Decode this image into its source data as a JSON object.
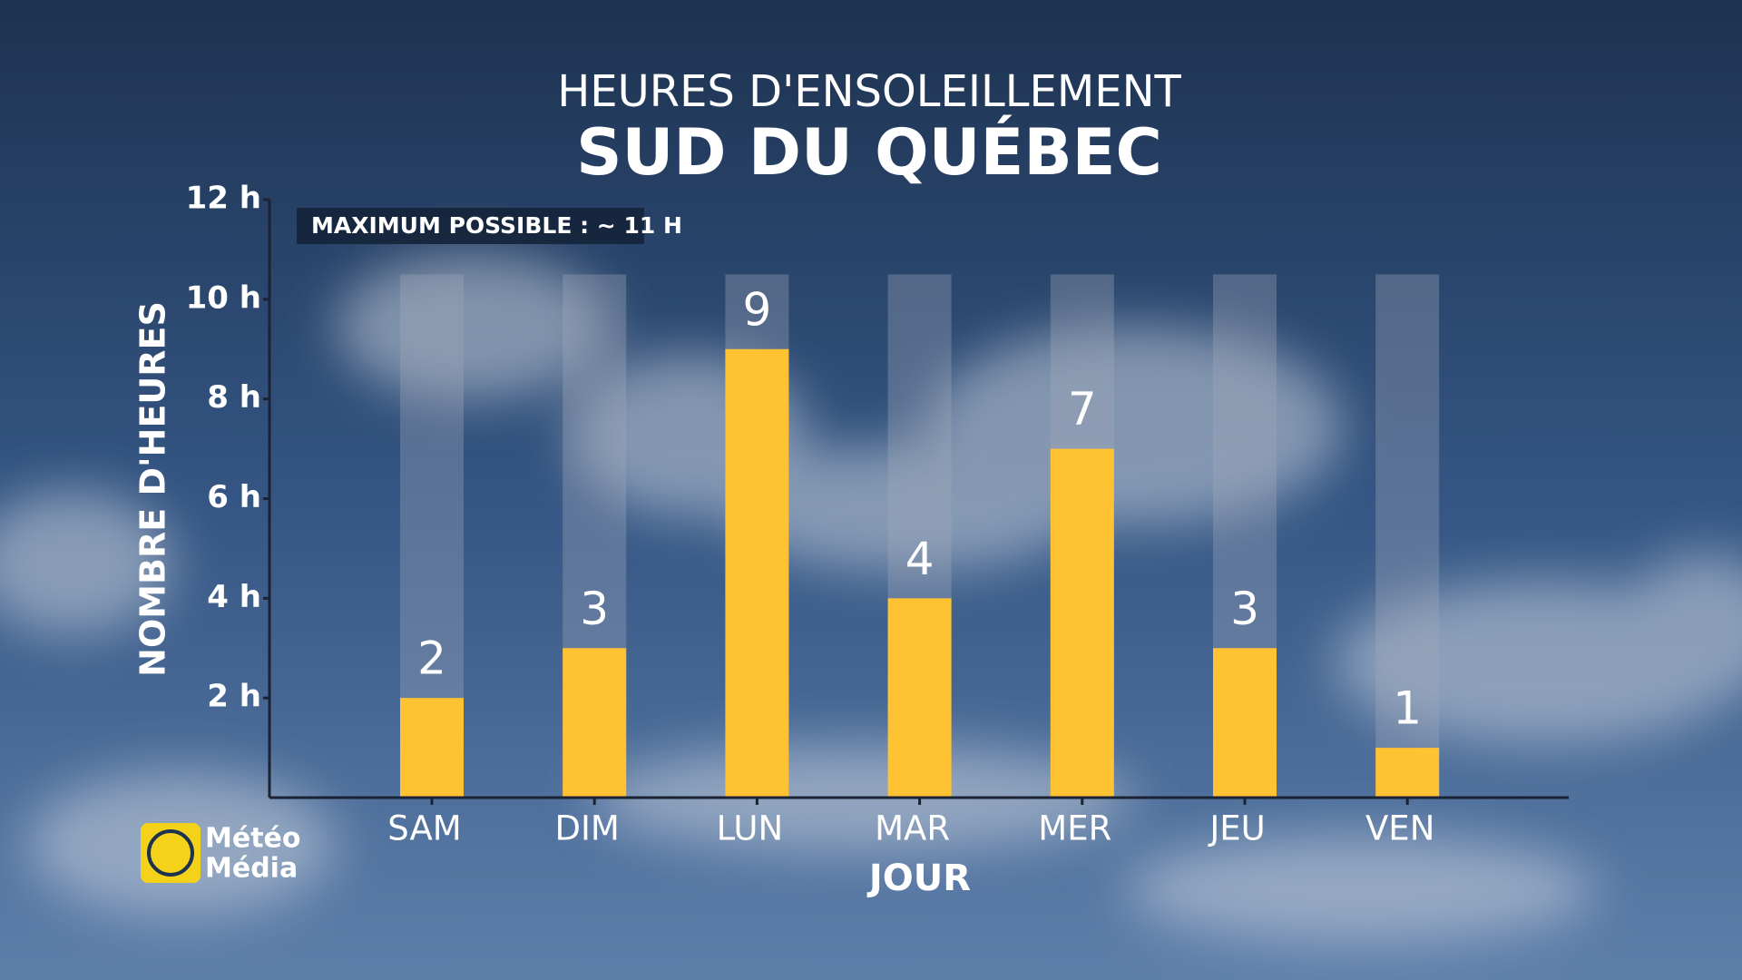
{
  "chart_data": {
    "type": "bar",
    "title": "HEURES D'ENSOLEILLEMENT",
    "subtitle": "SUD DU QUÉBEC",
    "annotation": "MAXIMUM POSSIBLE : ~ 11 H",
    "y_label": "NOMBRE D'HEURES",
    "x_label": "JOUR",
    "categories": [
      "SAM",
      "DIM",
      "LUN",
      "MAR",
      "MER",
      "JEU",
      "VEN"
    ],
    "values": [
      2,
      3,
      9,
      4,
      7,
      3,
      1
    ],
    "color": "#ffc233",
    "max_values": [
      10.5,
      10.5,
      10.5,
      10.5,
      10.5,
      10.5,
      10.5
    ],
    "max_color": "rgba(160,170,185,0.35)",
    "ylim": [
      0,
      12
    ],
    "yticks": [
      {
        "value": 2,
        "label": "2 h"
      },
      {
        "value": 4,
        "label": "4 h"
      },
      {
        "value": 6,
        "label": "6 h"
      },
      {
        "value": 8,
        "label": "8 h"
      },
      {
        "value": 10,
        "label": "10 h"
      },
      {
        "value": 12,
        "label": "12 h"
      }
    ],
    "grid": false
  },
  "logo": {
    "line1": "Météo",
    "line2": "Média"
  }
}
